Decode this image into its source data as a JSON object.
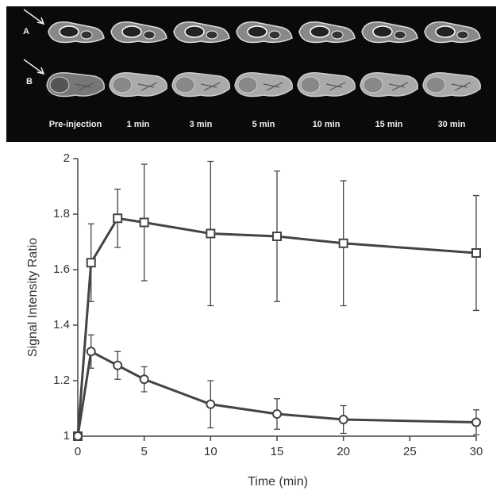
{
  "image_panel": {
    "rows": [
      "A",
      "B"
    ],
    "columns": [
      "Pre-injection",
      "1 min",
      "3 min",
      "5 min",
      "10 min",
      "15 min",
      "30 min"
    ]
  },
  "chart_data": {
    "type": "line",
    "x_label": "Time (min)",
    "y_label": "Signal Intensity Ratio",
    "x": [
      0,
      1,
      3,
      5,
      10,
      15,
      20,
      30
    ],
    "series": [
      {
        "marker": "square",
        "color": "#444444",
        "values": [
          1,
          1.625,
          1.785,
          1.77,
          1.73,
          1.72,
          1.695,
          1.66
        ],
        "errors": [
          0,
          0.14,
          0.105,
          0.21,
          0.26,
          0.235,
          0.225,
          0.207
        ]
      },
      {
        "marker": "circle",
        "color": "#444444",
        "values": [
          1,
          1.305,
          1.255,
          1.205,
          1.115,
          1.08,
          1.06,
          1.05
        ],
        "errors": [
          0,
          0.06,
          0.05,
          0.045,
          0.085,
          0.055,
          0.05,
          0.045
        ]
      }
    ],
    "xlim": [
      0,
      30
    ],
    "xticks": [
      0,
      5,
      10,
      15,
      20,
      25,
      30
    ],
    "ylim": [
      1,
      2
    ],
    "yticks": [
      1,
      1.2,
      1.4,
      1.6,
      1.8,
      2
    ],
    "grid": false
  }
}
